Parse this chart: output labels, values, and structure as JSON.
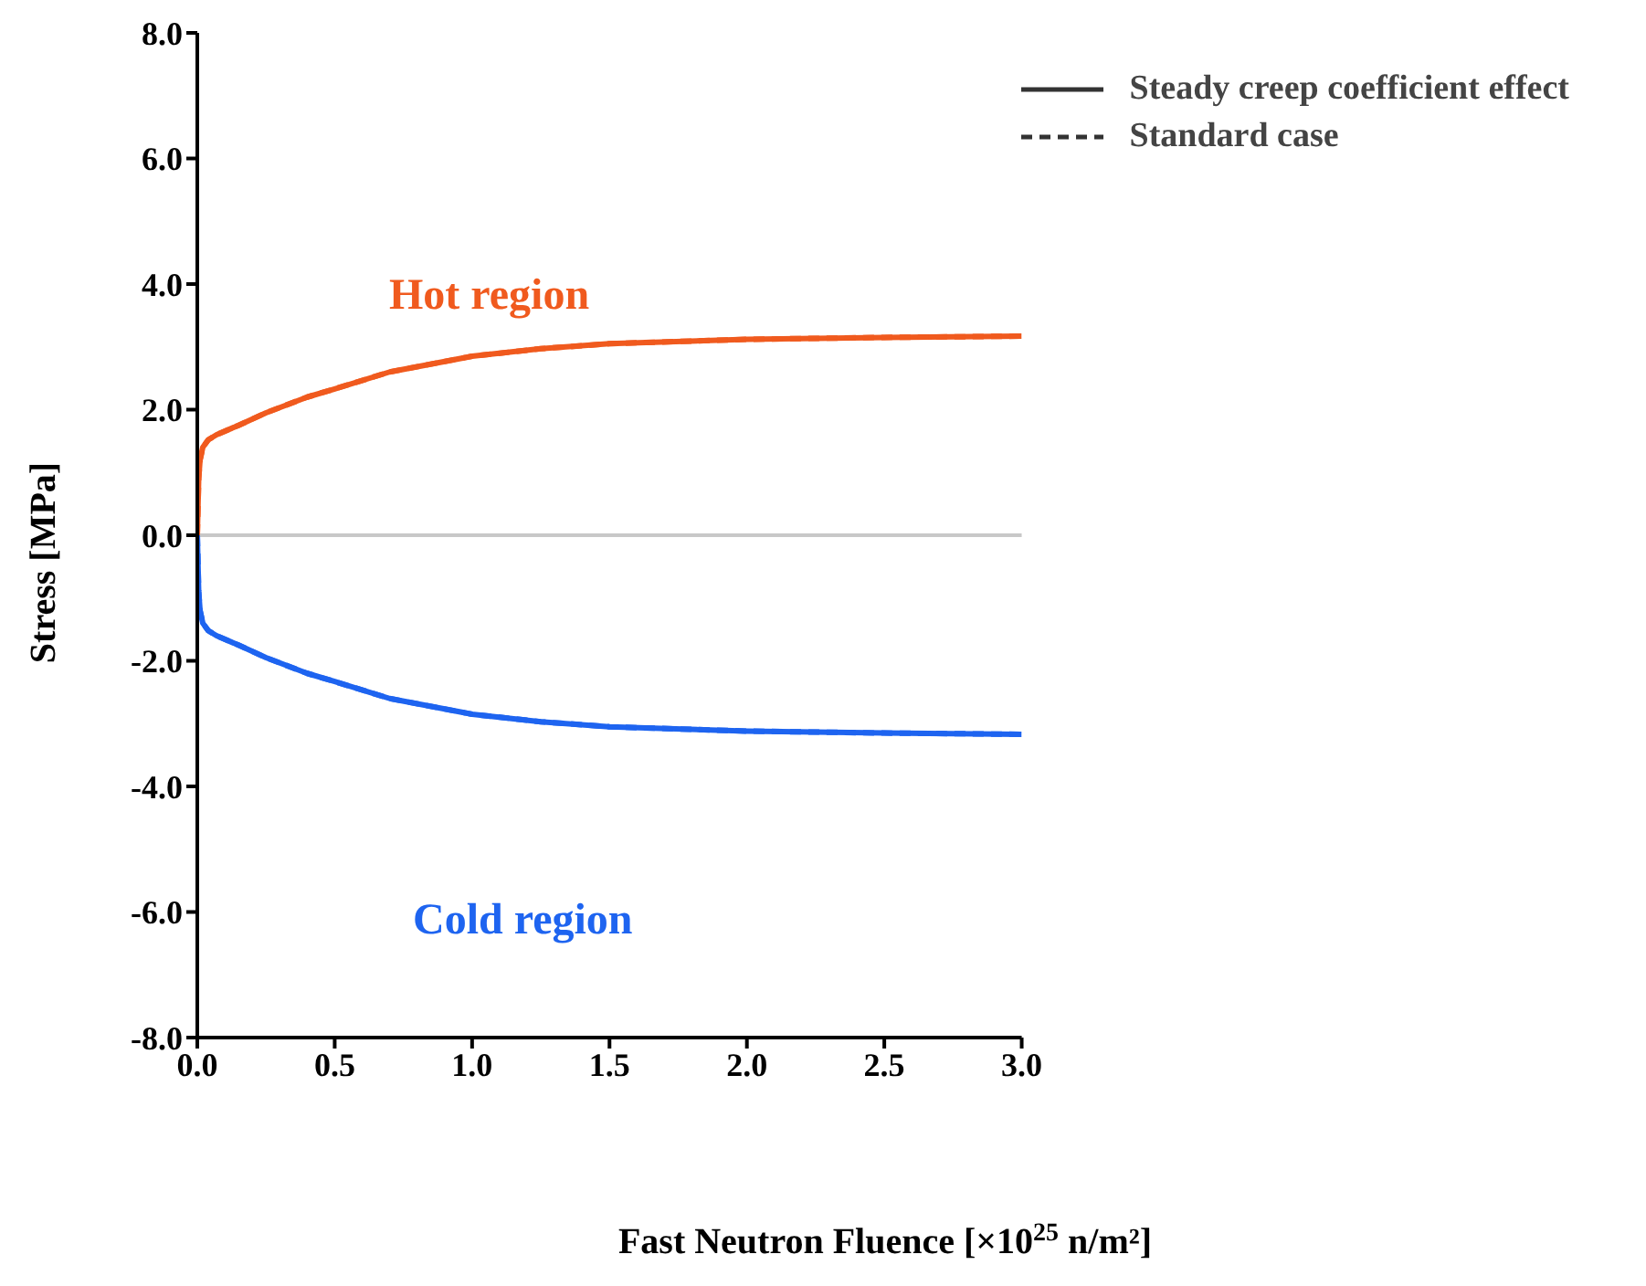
{
  "chart_data": {
    "type": "line",
    "xlabel": "Fast Neutron Fluence  [×10$^{25}$ n/m²]",
    "ylabel": "Stress [MPa]",
    "xlim": [
      0,
      3
    ],
    "ylim": [
      -8,
      8
    ],
    "xticks": [
      {
        "value": 0,
        "label": "0.0"
      },
      0.5,
      {
        "value": 1,
        "label": "1.0"
      },
      1.5,
      {
        "value": 2,
        "label": "2.0"
      },
      2.5,
      {
        "value": 3,
        "label": "3.0"
      }
    ],
    "yticks": [
      {
        "value": -8,
        "label": "-8.0"
      },
      {
        "value": -6,
        "label": "-6.0"
      },
      {
        "value": -4,
        "label": "-4.0"
      },
      {
        "value": -2,
        "label": "-2.0"
      },
      {
        "value": 0,
        "label": "0.0"
      },
      {
        "value": 2,
        "label": "2.0"
      },
      {
        "value": 4,
        "label": "4.0"
      },
      {
        "value": 6,
        "label": "6.0"
      },
      {
        "value": 8,
        "label": "8.0"
      }
    ],
    "grid": false,
    "legend": "top right",
    "marker": "none",
    "ref_lines": [
      {
        "axis": "y",
        "value": 0,
        "color": "#c8c8c8"
      }
    ],
    "annotations": [
      "Hot region",
      "Cold region"
    ],
    "series": [
      {
        "name": "Steady creep coefficient effect",
        "color": "#f05a1e",
        "line_style": "solid",
        "x": [
          0,
          0.005,
          0.01,
          0.02,
          0.04,
          0.07,
          0.15,
          0.25,
          0.4,
          0.5,
          0.7,
          1.0,
          1.25,
          1.5,
          2.0,
          2.5,
          3.0
        ],
        "values": [
          0,
          0.9,
          1.2,
          1.4,
          1.52,
          1.6,
          1.75,
          1.95,
          2.2,
          2.33,
          2.6,
          2.85,
          2.97,
          3.05,
          3.12,
          3.15,
          3.17
        ]
      },
      {
        "name": "Standard case",
        "color": "#f05a1e",
        "line_style": "dashed",
        "x": [
          0,
          0.005,
          0.01,
          0.02,
          0.04,
          0.07,
          0.15,
          0.25,
          0.4,
          0.5,
          0.7,
          1.0,
          1.25,
          1.5,
          2.0,
          2.5,
          3.0
        ],
        "values": [
          0,
          0.9,
          1.2,
          1.4,
          1.52,
          1.6,
          1.75,
          1.95,
          2.2,
          2.33,
          2.6,
          2.85,
          2.97,
          3.05,
          3.12,
          3.15,
          3.17
        ]
      },
      {
        "color": "#1e64f0",
        "line_style": "solid",
        "x": [
          0,
          0.005,
          0.01,
          0.02,
          0.04,
          0.07,
          0.15,
          0.25,
          0.4,
          0.5,
          0.7,
          1.0,
          1.25,
          1.5,
          2.0,
          2.5,
          3.0
        ],
        "values": [
          0,
          -0.9,
          -1.2,
          -1.4,
          -1.52,
          -1.6,
          -1.75,
          -1.95,
          -2.2,
          -2.33,
          -2.6,
          -2.85,
          -2.97,
          -3.05,
          -3.12,
          -3.15,
          -3.17
        ]
      },
      {
        "color": "#1e64f0",
        "line_style": "dashed",
        "x": [
          0,
          0.005,
          0.01,
          0.02,
          0.04,
          0.07,
          0.15,
          0.25,
          0.4,
          0.5,
          0.7,
          1.0,
          1.25,
          1.5,
          2.0,
          2.5,
          3.0
        ],
        "values": [
          0,
          -0.9,
          -1.2,
          -1.4,
          -1.52,
          -1.6,
          -1.75,
          -1.95,
          -2.2,
          -2.33,
          -2.6,
          -2.85,
          -2.97,
          -3.05,
          -3.12,
          -3.15,
          -3.17
        ]
      }
    ]
  }
}
